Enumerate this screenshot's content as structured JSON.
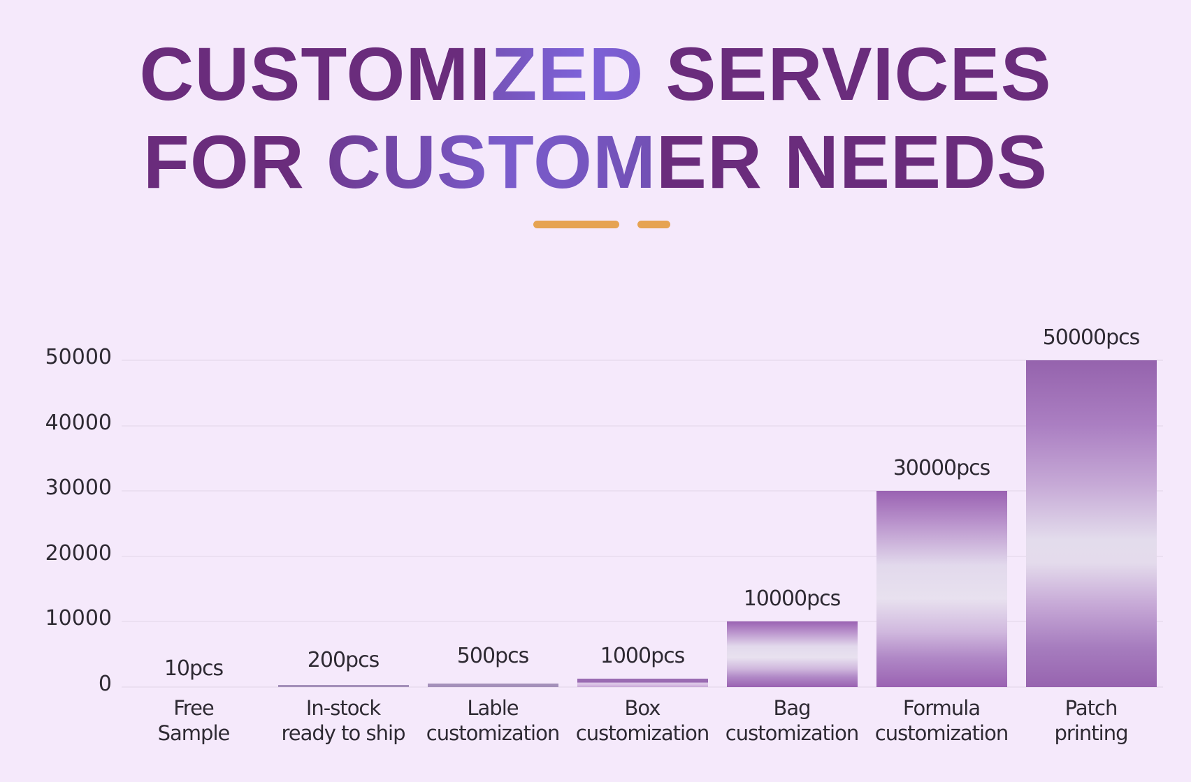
{
  "header": {
    "title_line1_part1": "CUSTOMI",
    "title_line1_part2": "ZED",
    "title_line1_part3": " SERVICES",
    "title_line2_part1": "FOR ",
    "title_line2_part2": "CUSTOM",
    "title_line2_part3": "ER NEEDS"
  },
  "colors": {
    "background": "#f5e9fb",
    "title_purple": "#6a2c7c",
    "title_highlight": "#7b5ccf",
    "accent_orange": "#e6a352",
    "bar_purple": "#9a62b2",
    "bar_light": "#e6e0ee",
    "text": "#2e2a33",
    "gridline": "#ebdff1"
  },
  "chart_data": {
    "type": "bar",
    "title": "CUSTOMIZED SERVICES FOR CUSTOMER NEEDS",
    "xlabel": "",
    "ylabel": "",
    "categories": [
      "Free Sample",
      "In-stock ready to ship",
      "Lable customization",
      "Box customization",
      "Bag customization",
      "Formula customization",
      "Patch printing"
    ],
    "category_lines": [
      [
        "Free",
        "Sample"
      ],
      [
        "In-stock",
        "ready to ship"
      ],
      [
        "Lable",
        "customization"
      ],
      [
        "Box",
        "customization"
      ],
      [
        "Bag",
        "customization"
      ],
      [
        "Formula",
        "customization"
      ],
      [
        "Patch",
        "printing"
      ]
    ],
    "values": [
      10,
      200,
      500,
      1000,
      10000,
      30000,
      50000
    ],
    "value_labels": [
      "10pcs",
      "200pcs",
      "500pcs",
      "1000pcs",
      "10000pcs",
      "30000pcs",
      "50000pcs"
    ],
    "yticks": [
      0,
      10000,
      20000,
      30000,
      40000,
      50000
    ],
    "ytick_labels": [
      "0",
      "10000",
      "20000",
      "30000",
      "40000",
      "50000"
    ],
    "ylim": [
      0,
      50000
    ],
    "grid": true,
    "legend": "none",
    "bar_style": "vertical gradient purple-white-purple"
  }
}
